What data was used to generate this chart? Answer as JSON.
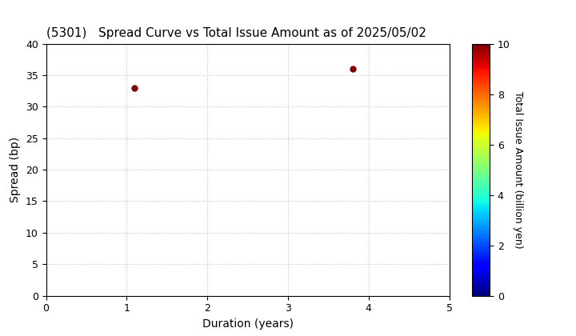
{
  "title": "(5301)   Spread Curve vs Total Issue Amount as of 2025/05/02",
  "xlabel": "Duration (years)",
  "ylabel": "Spread (bp)",
  "colorbar_label": "Total Issue Amount (billion yen)",
  "xlim": [
    0,
    5
  ],
  "ylim": [
    0,
    40
  ],
  "clim": [
    0,
    10
  ],
  "points": [
    {
      "duration": 1.1,
      "spread": 33.0,
      "amount": 10.0
    },
    {
      "duration": 3.8,
      "spread": 36.0,
      "amount": 10.0
    }
  ],
  "xticks": [
    0,
    1,
    2,
    3,
    4,
    5
  ],
  "yticks": [
    0,
    5,
    10,
    15,
    20,
    25,
    30,
    35,
    40
  ],
  "grid_color": "#bbbbbb",
  "background_color": "#ffffff",
  "title_fontsize": 11,
  "axis_fontsize": 10,
  "colorbar_fontsize": 9,
  "tick_fontsize": 9
}
